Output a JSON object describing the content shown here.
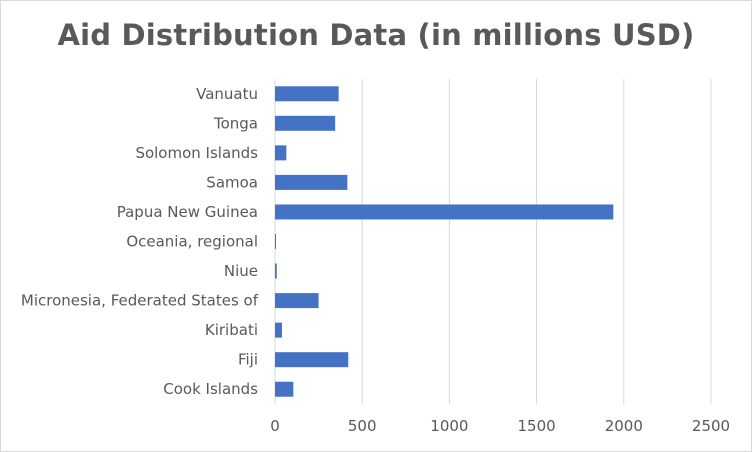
{
  "chart_data": {
    "type": "bar",
    "orientation": "horizontal",
    "title": "Aid Distribution Data (in millions USD)",
    "xlabel": "",
    "ylabel": "",
    "categories": [
      "Cook Islands",
      "Fiji",
      "Kiribati",
      "Micronesia, Federated States of",
      "Niue",
      "Oceania, regional",
      "Papua New Guinea",
      "Samoa",
      "Solomon Islands",
      "Tonga",
      "Vanuatu"
    ],
    "values": [
      105,
      420,
      40,
      250,
      10,
      2,
      1940,
      415,
      65,
      345,
      365
    ],
    "xlim": [
      0,
      2500
    ],
    "xticks": [
      0,
      500,
      1000,
      1500,
      2000,
      2500
    ],
    "grid": "vertical",
    "legend": "none",
    "bar_color": "#4472c4",
    "grid_color": "#d9d9d9"
  }
}
